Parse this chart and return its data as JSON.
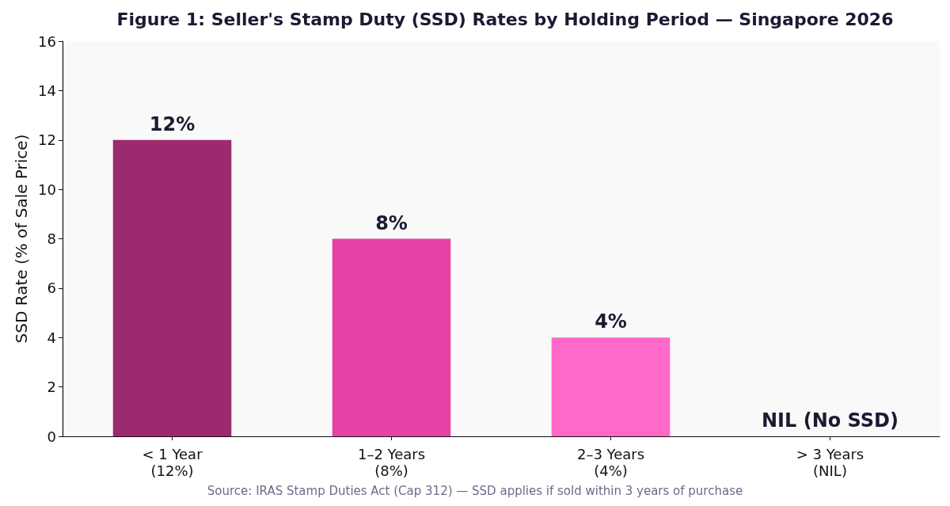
{
  "chart_data": {
    "type": "bar",
    "title": "Figure 1: Seller's Stamp Duty (SSD) Rates by Holding Period — Singapore 2026",
    "ylabel": "SSD Rate (% of Sale Price)",
    "categories": [
      "< 1 Year\n(12%)",
      "1–2 Years\n(8%)",
      "2–3 Years\n(4%)",
      "> 3 Years\n(NIL)"
    ],
    "values": [
      12,
      8,
      4,
      0
    ],
    "colors": [
      "#9b2b6e",
      "#e542a6",
      "#ff69c8",
      "#ffb3e0"
    ],
    "value_labels": [
      "12%",
      "8%",
      "4%",
      "NIL (No SSD)"
    ],
    "ylim": [
      0,
      16
    ],
    "yticks": [
      0,
      2,
      4,
      6,
      8,
      10,
      12,
      14,
      16
    ],
    "grid": false,
    "annotations": [
      "Source: IRAS Stamp Duties Act (Cap 312) — SSD applies if sold within 3 years of purchase"
    ]
  }
}
